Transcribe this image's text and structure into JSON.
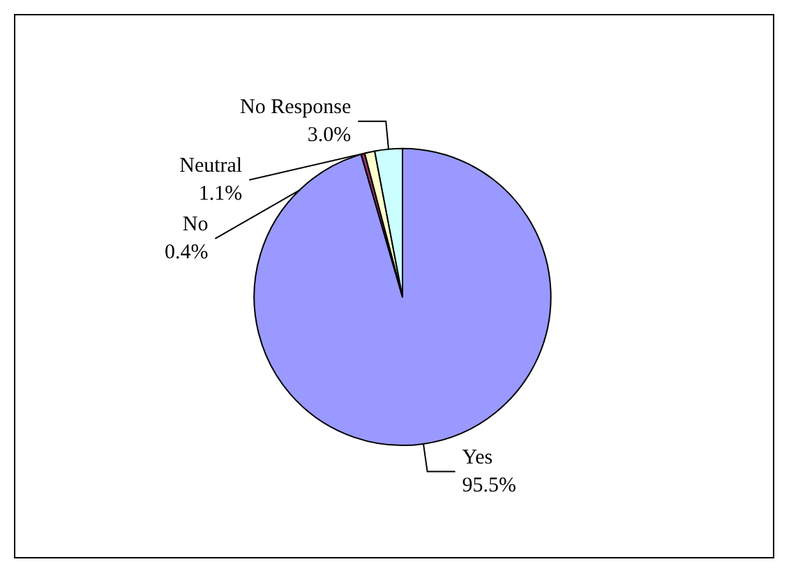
{
  "chart_data": {
    "type": "pie",
    "categories": [
      "Yes",
      "No",
      "Neutral",
      "No Response"
    ],
    "values": [
      95.5,
      0.4,
      1.1,
      3.0
    ],
    "colors": [
      "#9999ff",
      "#993366",
      "#ffffcc",
      "#ccffff"
    ],
    "value_labels": [
      "95.5%",
      "0.4%",
      "1.1%",
      "3.0%"
    ],
    "legend": false
  }
}
